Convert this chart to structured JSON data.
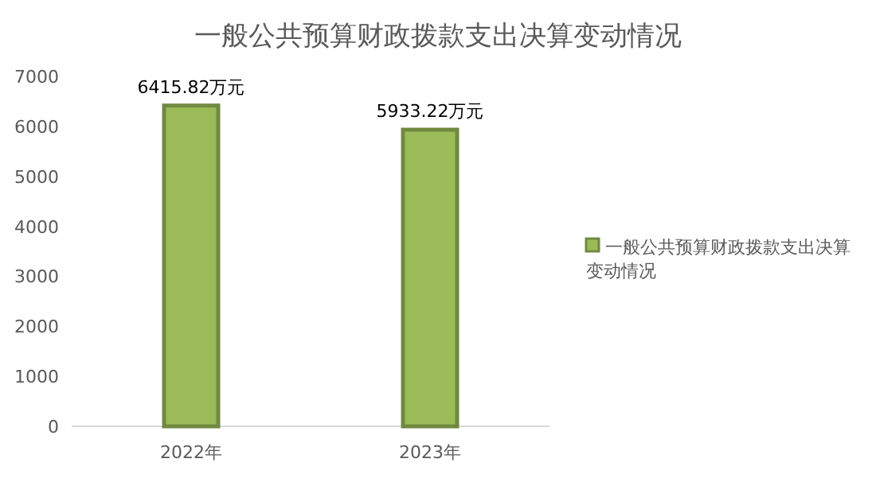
{
  "chart_data": {
    "type": "bar",
    "title": "一般公共预算财政拨款支出决算变动情况",
    "categories": [
      "2022年",
      "2023年"
    ],
    "series": [
      {
        "name": "一般公共预算财政拨款支出决算变动情况",
        "color": "#9bbb59",
        "values": [
          6415.82,
          5933.22
        ],
        "value_labels": [
          "6415.82万元",
          "5933.22万元"
        ]
      }
    ],
    "ylim": [
      0,
      7000
    ],
    "yticks": [
      0,
      1000,
      2000,
      3000,
      4000,
      5000,
      6000,
      7000
    ],
    "grid": false,
    "legend": "right"
  }
}
